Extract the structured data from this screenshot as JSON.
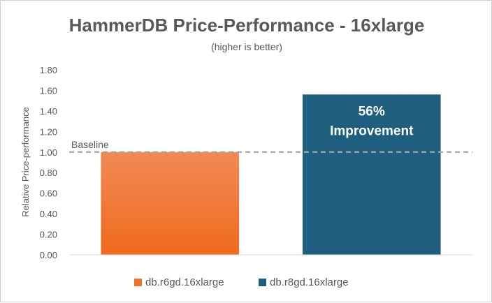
{
  "chart_data": {
    "type": "bar",
    "title": "HammerDB Price-Performance - 16xlarge",
    "subtitle": "(higher is better)",
    "ylabel": "Relative Price-performance",
    "xlabel": "",
    "ylim": [
      0,
      1.8
    ],
    "yticks": [
      "0.00",
      "0.20",
      "0.40",
      "0.60",
      "0.80",
      "1.00",
      "1.20",
      "1.40",
      "1.60",
      "1.80"
    ],
    "grid": false,
    "legend_position": "bottom",
    "categories": [
      "db.r6gd.16xlarge",
      "db.r8gd.16xlarge"
    ],
    "values": [
      1.0,
      1.56
    ],
    "colors": [
      "#F07028",
      "#1E5F80"
    ],
    "bar_annotations": [
      "",
      "56%\nImprovement"
    ],
    "reference_line": {
      "value": 1.0,
      "label": "Baseline",
      "color": "#A6A6A6",
      "style": "dashed"
    }
  }
}
